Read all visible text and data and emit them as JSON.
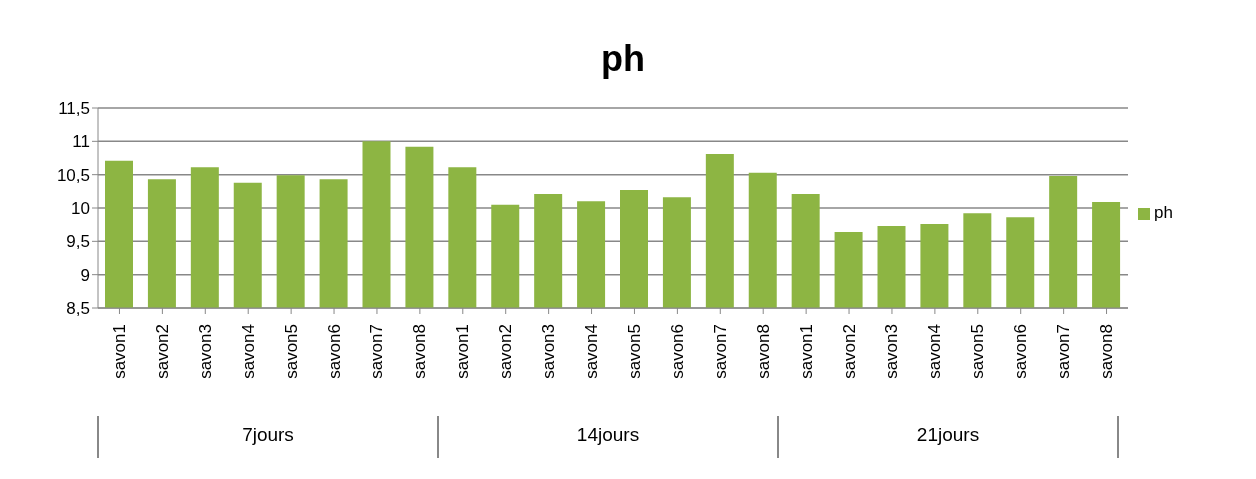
{
  "chart_data": {
    "type": "bar",
    "title": "ph",
    "categories": [
      "savon1",
      "savon2",
      "savon3",
      "savon4",
      "savon5",
      "savon6",
      "savon7",
      "savon8",
      "savon1",
      "savon2",
      "savon3",
      "savon4",
      "savon5",
      "savon6",
      "savon7",
      "savon8",
      "savon1",
      "savon2",
      "savon3",
      "savon4",
      "savon5",
      "savon6",
      "savon7",
      "savon8"
    ],
    "series": [
      {
        "name": "ph",
        "color": "#8db543",
        "values": [
          10.71,
          10.43,
          10.61,
          10.38,
          10.49,
          10.43,
          11.0,
          10.92,
          10.61,
          10.05,
          10.21,
          10.1,
          10.27,
          10.16,
          10.81,
          10.53,
          10.21,
          9.64,
          9.73,
          9.76,
          9.92,
          9.86,
          10.48,
          10.09
        ]
      }
    ],
    "annotations": [
      "7jours",
      "14jours",
      "21jours"
    ],
    "ylim": [
      8.5,
      11.5
    ],
    "yticks": [
      {
        "value": 8.5,
        "label": "8,5"
      },
      9,
      {
        "value": 9.5,
        "label": "9,5"
      },
      10,
      {
        "value": 10.5,
        "label": "10,5"
      },
      11,
      {
        "value": 11.5,
        "label": "11,5"
      }
    ],
    "grid": "y",
    "legend": "right"
  }
}
